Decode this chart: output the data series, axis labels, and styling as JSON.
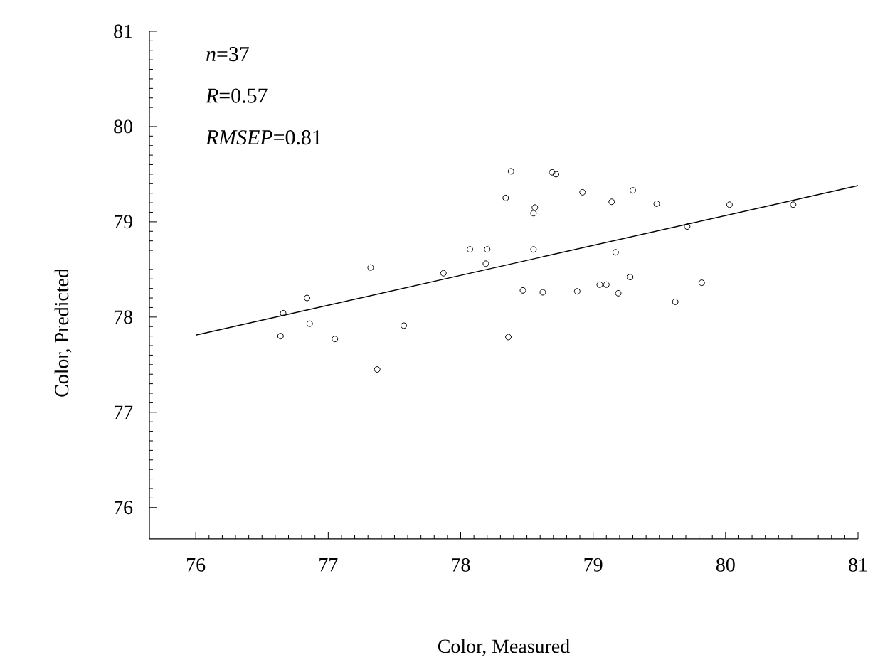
{
  "chart_data": {
    "type": "scatter",
    "xlabel": "Color, Measured",
    "ylabel": "Color, Predicted",
    "annotations": [
      "*n*=37",
      "*R*=0.57",
      "*RMSEP*=0.81"
    ],
    "xlim": [
      75.65,
      81
    ],
    "ylim": [
      75.67,
      81
    ],
    "xticks": [
      76,
      77,
      78,
      79,
      80,
      81
    ],
    "yticks": [
      76,
      77,
      78,
      79,
      80,
      81
    ],
    "series": [
      {
        "color": "#000000",
        "marker": "circle",
        "x": [
          76.64,
          76.66,
          76.84,
          76.86,
          77.05,
          77.32,
          77.37,
          77.57,
          77.87,
          78.07,
          78.19,
          78.2,
          78.34,
          78.36,
          78.38,
          78.47,
          78.55,
          78.55,
          78.56,
          78.62,
          78.69,
          78.72,
          78.88,
          78.92,
          79.05,
          79.1,
          79.14,
          79.17,
          79.19,
          79.28,
          79.3,
          79.48,
          79.62,
          79.71,
          79.82,
          80.03,
          80.51
        ],
        "values": [
          77.8,
          78.04,
          78.2,
          77.93,
          77.77,
          78.52,
          77.45,
          77.91,
          78.46,
          78.71,
          78.56,
          78.71,
          79.25,
          77.79,
          79.53,
          78.28,
          78.71,
          79.09,
          79.15,
          78.26,
          79.52,
          79.5,
          78.27,
          79.31,
          78.34,
          78.34,
          79.21,
          78.68,
          78.25,
          78.42,
          79.33,
          79.19,
          78.16,
          78.95,
          78.36,
          79.18,
          79.18
        ]
      },
      {
        "type": "line",
        "color": "#000000",
        "marker": "none",
        "line_style": "solid",
        "x": [
          76,
          81
        ],
        "values": [
          77.81,
          79.38
        ]
      }
    ]
  }
}
